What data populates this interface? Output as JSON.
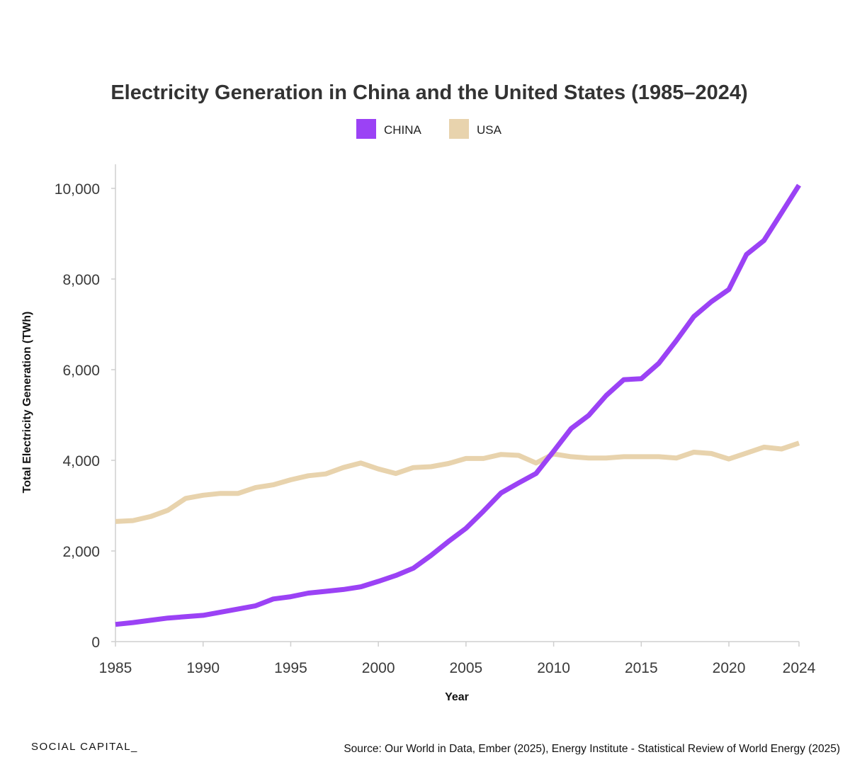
{
  "chart_data": {
    "type": "line",
    "title": "Electricity Generation in China and the United States (1985–2024)",
    "xlabel": "Year",
    "ylabel": "Total Electricity Generation (TWh)",
    "xlim": [
      1985,
      2024
    ],
    "ylim": [
      0,
      10500
    ],
    "x_ticks": [
      1985,
      1990,
      1995,
      2000,
      2005,
      2010,
      2015,
      2020,
      2024
    ],
    "x_tick_labels": [
      "1985",
      "1990",
      "1995",
      "2000",
      "2005",
      "2010",
      "2015",
      "2020",
      "2024"
    ],
    "y_ticks": [
      0,
      2000,
      4000,
      6000,
      8000,
      10000
    ],
    "y_tick_labels": [
      "0",
      "2,000",
      "4,000",
      "6,000",
      "8,000",
      "10,000"
    ],
    "grid": false,
    "legend_position": "top-center",
    "x": [
      1985,
      1986,
      1987,
      1988,
      1989,
      1990,
      1991,
      1992,
      1993,
      1994,
      1995,
      1996,
      1997,
      1998,
      1999,
      2000,
      2001,
      2002,
      2003,
      2004,
      2005,
      2006,
      2007,
      2008,
      2009,
      2010,
      2011,
      2012,
      2013,
      2014,
      2015,
      2016,
      2017,
      2018,
      2019,
      2020,
      2021,
      2022,
      2023,
      2024
    ],
    "series": [
      {
        "name": "CHINA",
        "color": "#9b42f5",
        "values": [
          380,
          420,
          470,
          520,
          550,
          580,
          650,
          720,
          790,
          940,
          990,
          1070,
          1110,
          1150,
          1210,
          1330,
          1460,
          1620,
          1900,
          2210,
          2500,
          2880,
          3280,
          3500,
          3710,
          4200,
          4700,
          4990,
          5430,
          5780,
          5800,
          6140,
          6640,
          7170,
          7500,
          7770,
          8540,
          8850,
          9460,
          10070
        ]
      },
      {
        "name": "USA",
        "color": "#e8d3ad",
        "values": [
          2650,
          2670,
          2760,
          2900,
          3160,
          3230,
          3270,
          3270,
          3400,
          3460,
          3570,
          3660,
          3700,
          3840,
          3940,
          3810,
          3710,
          3840,
          3860,
          3930,
          4040,
          4040,
          4130,
          4110,
          3940,
          4140,
          4080,
          4050,
          4050,
          4080,
          4080,
          4080,
          4050,
          4180,
          4150,
          4030,
          4160,
          4290,
          4250,
          4380
        ]
      }
    ]
  },
  "footer": {
    "brand": "SOCIAL CAPITAL_",
    "source": "Source: Our World in Data, Ember (2025), Energy Institute - Statistical Review of World Energy (2025)"
  }
}
